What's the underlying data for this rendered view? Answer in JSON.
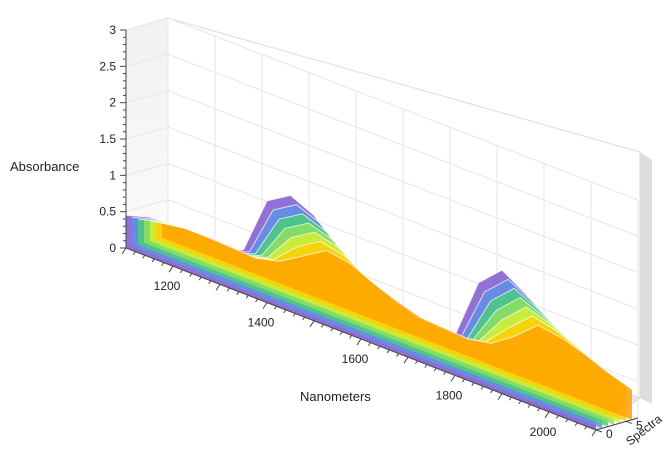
{
  "chart_data": {
    "type": "surface",
    "title": "",
    "xlabel": "Nanometers",
    "ylabel": "Absorbance",
    "zlabel": "Spectra",
    "x_ticks": [
      "1200",
      "1400",
      "1600",
      "1800",
      "2000"
    ],
    "y_ticks": [
      "0",
      "0.5",
      "1",
      "1.5",
      "2",
      "2.5",
      "3"
    ],
    "z_ticks": [
      "0",
      "5"
    ],
    "xlim": [
      1100,
      2100
    ],
    "ylim": [
      0,
      3
    ],
    "zlim": [
      0,
      7
    ],
    "grid": true,
    "colorscale": [
      "#ffa000",
      "#ffd000",
      "#d8ee30",
      "#8fe060",
      "#49d07a",
      "#5f93e6",
      "#7a52cc"
    ],
    "spectra_count": 7,
    "x": [
      1100,
      1150,
      1200,
      1250,
      1300,
      1350,
      1400,
      1450,
      1500,
      1550,
      1600,
      1650,
      1700,
      1750,
      1800,
      1850,
      1900,
      1950,
      2000,
      2050,
      2100
    ],
    "series": [
      {
        "values": [
          0.45,
          0.55,
          0.55,
          0.5,
          0.45,
          0.6,
          1.4,
          1.6,
          1.45,
          1.1,
          0.8,
          0.55,
          0.5,
          0.45,
          0.55,
          1.4,
          1.7,
          1.5,
          1.25,
          1.05,
          0.85
        ]
      },
      {
        "values": [
          0.4,
          0.5,
          0.5,
          0.45,
          0.42,
          0.55,
          1.25,
          1.45,
          1.32,
          1.0,
          0.72,
          0.5,
          0.45,
          0.42,
          0.5,
          1.25,
          1.55,
          1.38,
          1.15,
          0.95,
          0.78
        ]
      },
      {
        "values": [
          0.35,
          0.45,
          0.45,
          0.4,
          0.38,
          0.5,
          1.1,
          1.3,
          1.18,
          0.9,
          0.65,
          0.45,
          0.42,
          0.4,
          0.45,
          1.1,
          1.4,
          1.25,
          1.05,
          0.85,
          0.7
        ]
      },
      {
        "values": [
          0.32,
          0.4,
          0.4,
          0.36,
          0.34,
          0.45,
          0.95,
          1.15,
          1.05,
          0.8,
          0.58,
          0.4,
          0.38,
          0.36,
          0.42,
          0.95,
          1.25,
          1.12,
          0.95,
          0.78,
          0.62
        ]
      },
      {
        "values": [
          0.28,
          0.35,
          0.35,
          0.32,
          0.3,
          0.4,
          0.8,
          1.0,
          0.92,
          0.7,
          0.5,
          0.36,
          0.34,
          0.32,
          0.38,
          0.8,
          1.1,
          1.0,
          0.85,
          0.7,
          0.55
        ]
      },
      {
        "values": [
          0.24,
          0.3,
          0.3,
          0.28,
          0.26,
          0.35,
          0.65,
          0.85,
          0.78,
          0.6,
          0.44,
          0.32,
          0.3,
          0.28,
          0.34,
          0.66,
          0.95,
          0.88,
          0.75,
          0.6,
          0.48
        ]
      },
      {
        "values": [
          0.2,
          0.25,
          0.25,
          0.24,
          0.22,
          0.3,
          0.5,
          0.7,
          0.65,
          0.5,
          0.38,
          0.28,
          0.26,
          0.24,
          0.3,
          0.52,
          0.8,
          0.75,
          0.65,
          0.52,
          0.42
        ]
      }
    ]
  }
}
